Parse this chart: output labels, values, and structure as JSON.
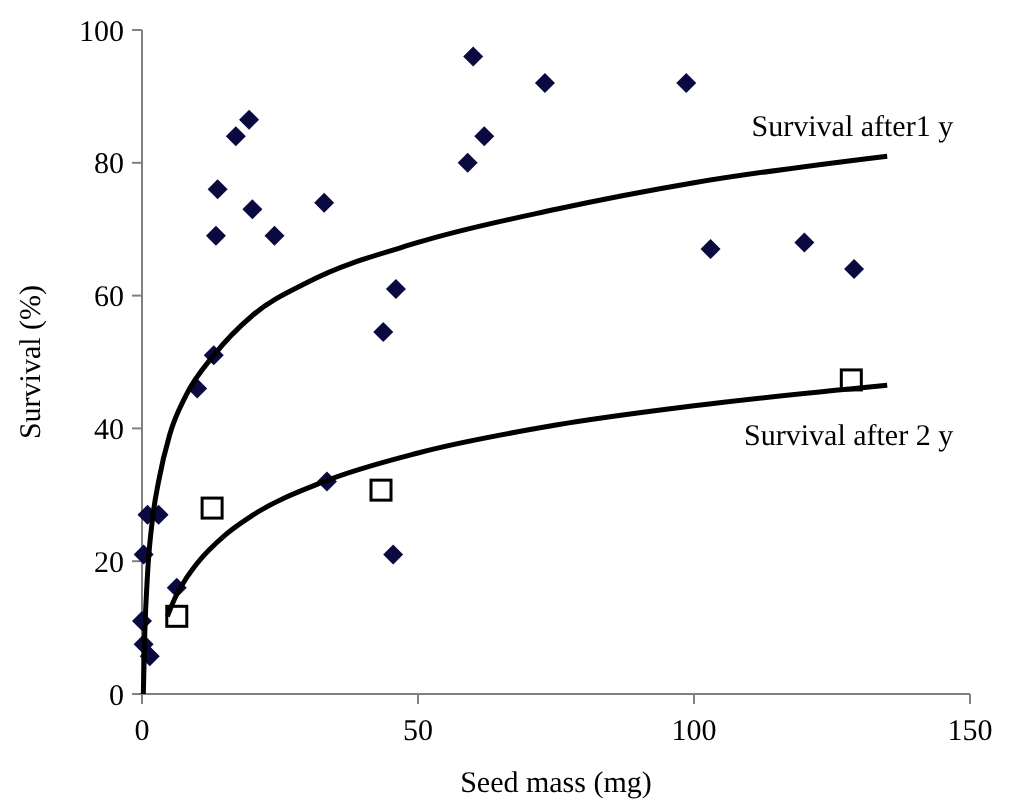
{
  "chart_data": {
    "type": "scatter",
    "xlabel": "Seed mass (mg)",
    "ylabel": "Survival (%)",
    "xlim": [
      0,
      150
    ],
    "xticks": [
      0,
      50,
      100,
      150
    ],
    "ylim": [
      0,
      100
    ],
    "yticks": [
      0,
      20,
      40,
      60,
      80,
      100
    ],
    "grid": false,
    "series": [
      {
        "marker": "diamond",
        "color": "#0a0a40",
        "x": [
          0,
          0.3,
          1.4,
          0.3,
          1,
          3,
          6.3,
          10,
          13,
          13.4,
          13.7,
          17,
          19.4,
          20,
          24,
          33,
          33.5,
          43.7,
          46,
          45.5,
          59,
          60,
          62,
          73,
          98.6,
          103,
          120,
          129
        ],
        "values": [
          11,
          7.5,
          5.7,
          21,
          27,
          27,
          16,
          46,
          51,
          69,
          76,
          84,
          86.5,
          73,
          69,
          74,
          32,
          54.5,
          61,
          21,
          80,
          96,
          84,
          92,
          92,
          67,
          68,
          64
        ]
      },
      {
        "marker": "square",
        "color": "#000000",
        "x": [
          6.3,
          12.7,
          43.3,
          128.5
        ],
        "values": [
          11.7,
          28,
          30.7,
          47.3
        ]
      },
      {
        "type": "line",
        "name": "Survival after1 y",
        "color": "#000000",
        "marker": "none",
        "x": [
          0.24,
          0.5,
          1,
          2,
          3,
          5,
          8,
          13,
          20,
          30,
          50,
          75,
          100,
          135
        ],
        "values": [
          0,
          9,
          18,
          27,
          32,
          39,
          45,
          51,
          57,
          62,
          68,
          73,
          77,
          81
        ]
      },
      {
        "type": "line",
        "name": "Survival after 2 y",
        "color": "#000000",
        "marker": "none",
        "x": [
          4.6,
          6,
          8,
          10,
          15,
          20,
          33,
          50,
          75,
          100,
          135
        ],
        "values": [
          11.7,
          14.5,
          17.4,
          19.7,
          23.9,
          26.9,
          32,
          36.3,
          40.5,
          43.4,
          46.5
        ]
      }
    ]
  }
}
